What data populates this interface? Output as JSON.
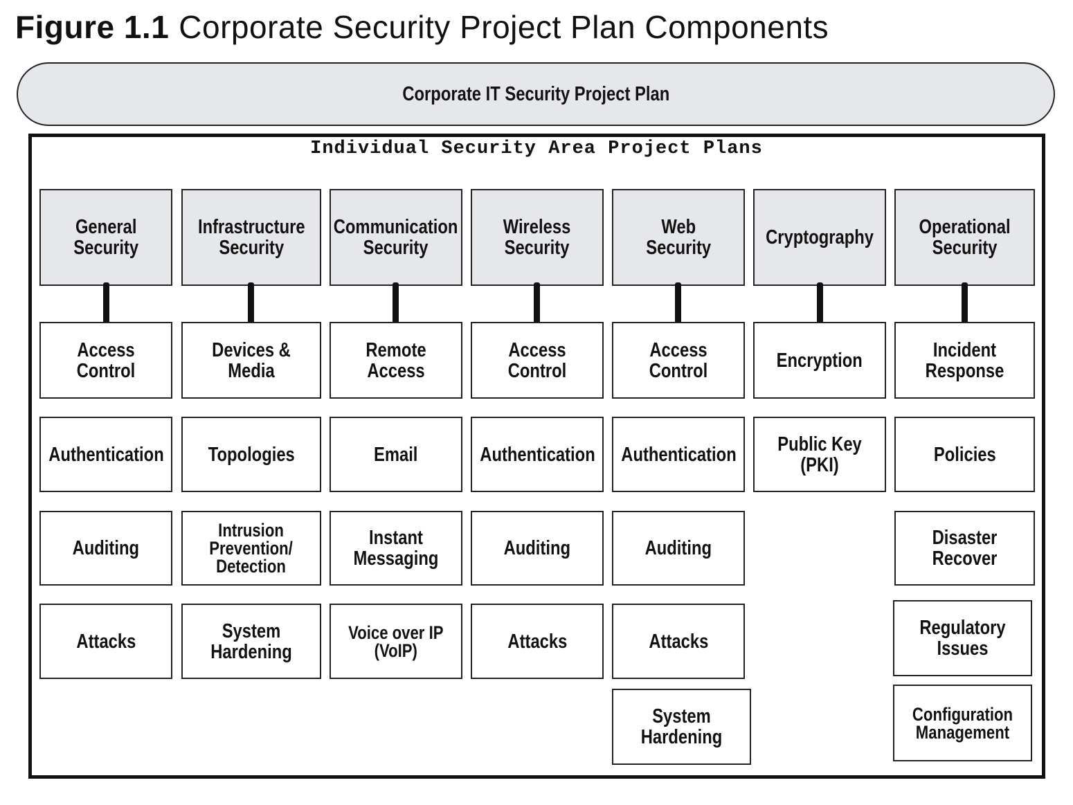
{
  "figure": {
    "number": "Figure 1.1",
    "title": "Corporate Security Project Plan Components"
  },
  "top_plan": "Corporate IT Security Project Plan",
  "container_title": "Individual Security Area Project Plans",
  "columns": [
    {
      "header": "General\nSecurity",
      "items": [
        "Access Control",
        "Authentication",
        "Auditing",
        "Attacks"
      ]
    },
    {
      "header": "Infrastructure\nSecurity",
      "items": [
        "Devices & Media",
        "Topologies",
        "Intrusion\nPrevention/\nDetection",
        "System Hardening"
      ]
    },
    {
      "header": "Communication\nSecurity",
      "items": [
        "Remote Access",
        "Email",
        "Instant Messaging",
        "Voice over IP\n(VoIP)"
      ]
    },
    {
      "header": "Wireless\nSecurity",
      "items": [
        "Access Control",
        "Authentication",
        "Auditing",
        "Attacks"
      ]
    },
    {
      "header": "Web\nSecurity",
      "items": [
        "Access Control",
        "Authentication",
        "Auditing",
        "Attacks",
        "System Hardening"
      ]
    },
    {
      "header": "Cryptography",
      "items": [
        "Encryption",
        "Public Key (PKI)"
      ]
    },
    {
      "header": "Operational\nSecurity",
      "items": [
        "Incident Response",
        "Policies",
        "Disaster Recover",
        "Regulatory Issues",
        "Configuration\nManagement"
      ]
    }
  ]
}
